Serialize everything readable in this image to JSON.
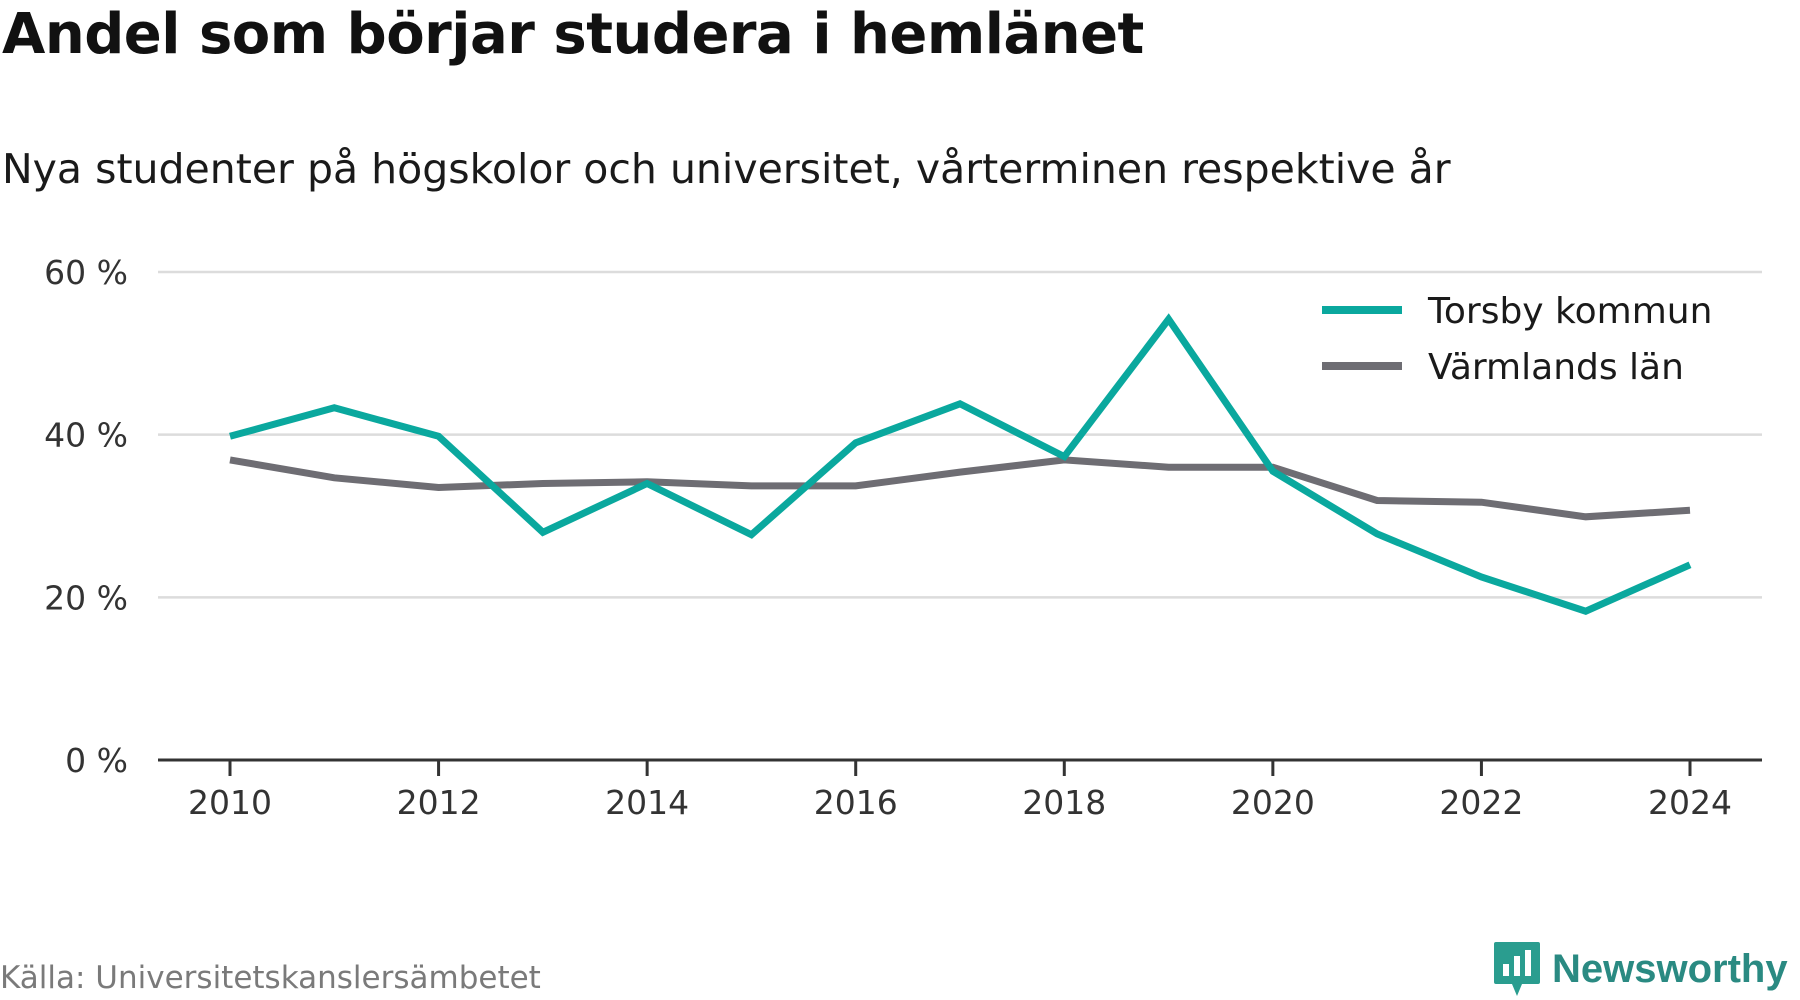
{
  "title": "Andel som börjar studera i hemlänet",
  "subtitle": "Nya studenter på högskolor och universitet, vårterminen respektive år",
  "source": "Källa: Universitetskanslersämbetet",
  "brand": {
    "name": "Newsworthy",
    "color": "#2a9d8f",
    "icon": "newsworthy-logo-icon"
  },
  "colors": {
    "torsby": "#0aa89e",
    "varmland": "#6e6d73",
    "grid": "#dcdcdc",
    "axis": "#333333"
  },
  "chart_data": {
    "type": "line",
    "x": [
      2010,
      2011,
      2012,
      2013,
      2014,
      2015,
      2016,
      2017,
      2018,
      2019,
      2020,
      2021,
      2022,
      2023,
      2024
    ],
    "xticks": [
      2010,
      2012,
      2014,
      2016,
      2018,
      2020,
      2022,
      2024
    ],
    "xtick_labels": [
      "2010",
      "2012",
      "2014",
      "2016",
      "2018",
      "2020",
      "2022",
      "2024"
    ],
    "ylim": [
      0,
      60
    ],
    "yticks": [
      0,
      20,
      40,
      60
    ],
    "ytick_labels": [
      "0 %",
      "20 %",
      "40 %",
      "60 %"
    ],
    "grid": true,
    "legend_position": "top-right",
    "series": [
      {
        "name": "Torsby kommun",
        "color": "#0aa89e",
        "values": [
          39.8,
          43.3,
          39.8,
          28.0,
          34.0,
          27.7,
          39.0,
          43.8,
          37.3,
          54.2,
          35.5,
          27.8,
          22.5,
          18.3,
          24.0
        ]
      },
      {
        "name": "Värmlands län",
        "color": "#6e6d73",
        "values": [
          36.9,
          34.7,
          33.5,
          34.0,
          34.2,
          33.7,
          33.7,
          35.4,
          36.9,
          36.0,
          36.0,
          31.9,
          31.7,
          29.9,
          30.7
        ]
      }
    ]
  }
}
